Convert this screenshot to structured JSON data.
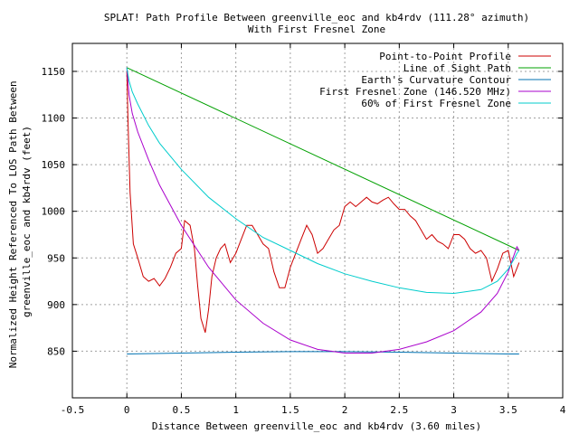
{
  "chart_data": {
    "type": "line",
    "title": "SPLAT! Path Profile Between greenville_eoc and kb4rdv (111.28° azimuth)",
    "subtitle": "With First Fresnel Zone",
    "xlabel": "Distance Between greenville_eoc and kb4rdv (3.60 miles)",
    "ylabel_lines": [
      "Normalized Height Referenced To LOS Path Between",
      "greenville_eoc and kb4rdv (feet)"
    ],
    "xlim": [
      -0.5,
      4
    ],
    "ylim": [
      800,
      1180
    ],
    "xticks": [
      -0.5,
      0,
      0.5,
      1,
      1.5,
      2,
      2.5,
      3,
      3.5,
      4
    ],
    "xtick_labels": [
      "-0.5",
      "0",
      "0.5",
      "1",
      "1.5",
      "2",
      "2.5",
      "3",
      "3.5",
      "4"
    ],
    "yticks": [
      850,
      900,
      950,
      1000,
      1050,
      1100,
      1150
    ],
    "ytick_labels": [
      "850",
      "900",
      "950",
      "1000",
      "1050",
      "1100",
      "1150"
    ],
    "grid": true,
    "legend_position": "top-right",
    "series": [
      {
        "name": "Point-to-Point Profile",
        "color": "#cc0000",
        "x": [
          0,
          0.01,
          0.03,
          0.06,
          0.1,
          0.15,
          0.2,
          0.25,
          0.3,
          0.35,
          0.4,
          0.45,
          0.5,
          0.53,
          0.58,
          0.62,
          0.65,
          0.68,
          0.72,
          0.75,
          0.78,
          0.82,
          0.86,
          0.9,
          0.95,
          1.0,
          1.05,
          1.1,
          1.15,
          1.2,
          1.25,
          1.3,
          1.35,
          1.4,
          1.45,
          1.5,
          1.55,
          1.6,
          1.65,
          1.7,
          1.75,
          1.8,
          1.85,
          1.9,
          1.95,
          2.0,
          2.05,
          2.1,
          2.15,
          2.2,
          2.25,
          2.3,
          2.35,
          2.4,
          2.45,
          2.5,
          2.55,
          2.6,
          2.65,
          2.7,
          2.75,
          2.8,
          2.85,
          2.9,
          2.95,
          3.0,
          3.05,
          3.1,
          3.15,
          3.2,
          3.25,
          3.3,
          3.35,
          3.4,
          3.45,
          3.5,
          3.55,
          3.6
        ],
        "y": [
          1150,
          1100,
          1020,
          965,
          950,
          930,
          925,
          928,
          920,
          928,
          940,
          955,
          960,
          990,
          985,
          960,
          920,
          885,
          870,
          895,
          930,
          950,
          960,
          965,
          945,
          955,
          970,
          985,
          985,
          975,
          965,
          960,
          935,
          918,
          918,
          940,
          955,
          970,
          985,
          975,
          955,
          960,
          970,
          980,
          985,
          1005,
          1010,
          1005,
          1010,
          1015,
          1010,
          1008,
          1012,
          1015,
          1008,
          1002,
          1002,
          995,
          990,
          980,
          970,
          975,
          968,
          965,
          960,
          975,
          975,
          970,
          960,
          955,
          958,
          950,
          925,
          938,
          955,
          958,
          930,
          945
        ]
      },
      {
        "name": "Line of Sight Path",
        "color": "#00a000",
        "x": [
          0,
          3.6
        ],
        "y": [
          1154,
          958
        ]
      },
      {
        "name": "Earth's Curvature Contour",
        "color": "#0072b2",
        "x": [
          0,
          0.5,
          1,
          1.5,
          2,
          2.5,
          3,
          3.5,
          3.6
        ],
        "y": [
          847,
          848,
          849,
          849.5,
          849.5,
          849,
          848,
          847,
          847
        ]
      },
      {
        "name": "First Fresnel Zone (146.520 MHz)",
        "color": "#aa00cc",
        "x": [
          0,
          0.02,
          0.05,
          0.1,
          0.2,
          0.3,
          0.5,
          0.75,
          1.0,
          1.25,
          1.5,
          1.75,
          2.0,
          2.25,
          2.5,
          2.75,
          3.0,
          3.25,
          3.4,
          3.5,
          3.55,
          3.58,
          3.6
        ],
        "y": [
          1154,
          1125,
          1105,
          1085,
          1055,
          1028,
          985,
          940,
          905,
          880,
          862,
          852,
          848,
          848,
          852,
          860,
          872,
          892,
          912,
          935,
          952,
          962,
          958
        ]
      },
      {
        "name": "60% of First Fresnel Zone",
        "color": "#00cccc",
        "x": [
          0,
          0.02,
          0.05,
          0.1,
          0.2,
          0.3,
          0.5,
          0.75,
          1.0,
          1.25,
          1.5,
          1.75,
          2.0,
          2.25,
          2.5,
          2.75,
          3.0,
          3.25,
          3.4,
          3.5,
          3.55,
          3.58,
          3.6
        ],
        "y": [
          1154,
          1140,
          1128,
          1115,
          1092,
          1073,
          1045,
          1015,
          992,
          972,
          958,
          944,
          933,
          925,
          918,
          913,
          912,
          916,
          925,
          938,
          948,
          955,
          958
        ]
      }
    ]
  }
}
